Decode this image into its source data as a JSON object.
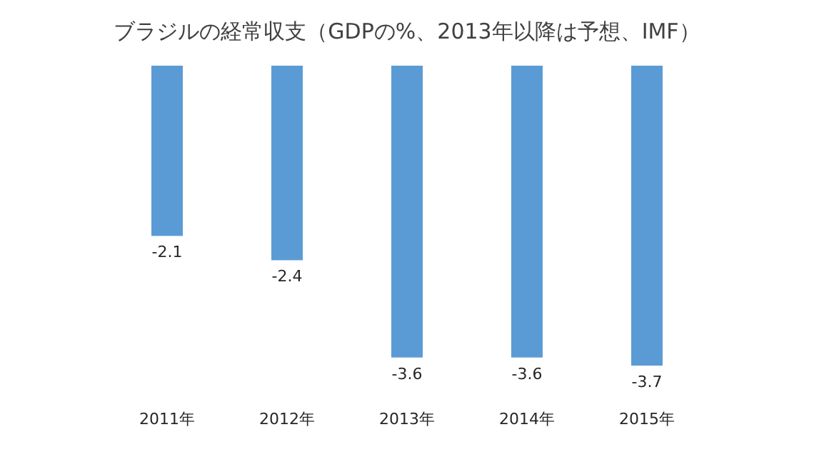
{
  "chart_data": {
    "type": "bar",
    "title": "ブラジルの経常収支（GDPの%、2013年以降は予想、IMF）",
    "categories": [
      "2011年",
      "2012年",
      "2013年",
      "2014年",
      "2015年"
    ],
    "values": [
      -2.1,
      -2.4,
      -3.6,
      -3.6,
      -3.7
    ],
    "color": "#5b9bd5",
    "data_labels": true
  }
}
